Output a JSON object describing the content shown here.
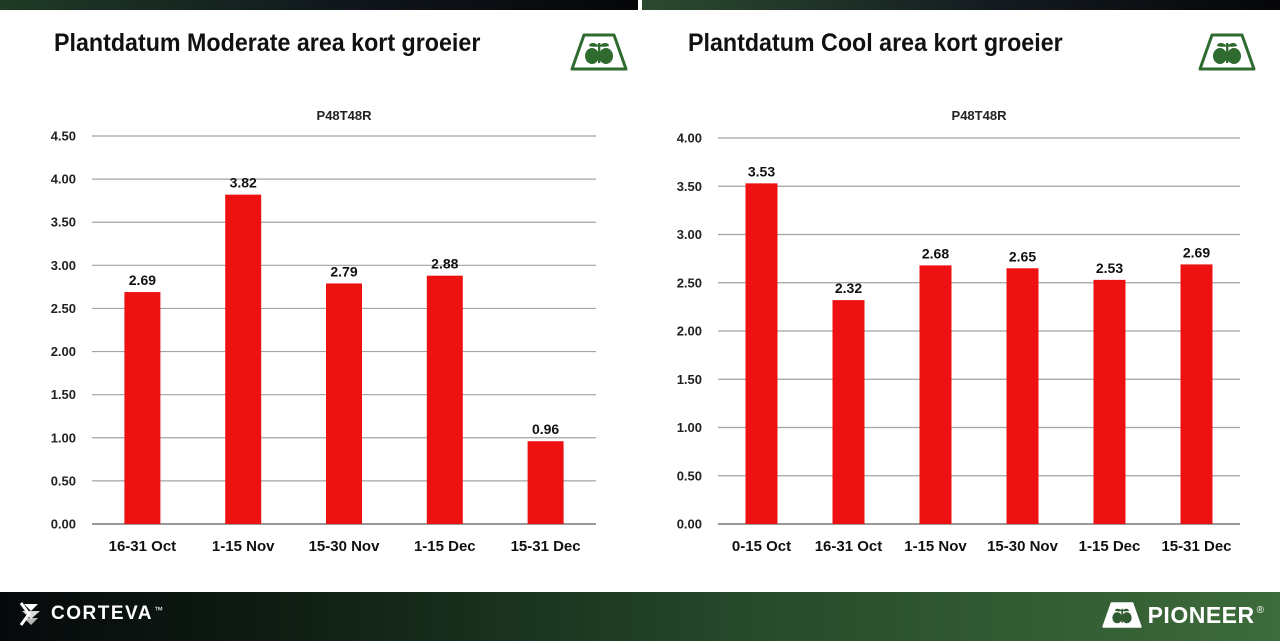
{
  "brand": {
    "left_name": "CORTEVA",
    "left_mark": "™",
    "right_name": "PIONEER",
    "right_mark": "®",
    "accent": "#3d6b3a",
    "logo_green": "#2f6b2f"
  },
  "panels": [
    {
      "title": "Plantdatum Moderate area kort groeier"
    },
    {
      "title": "Plantdatum Cool area kort groeier"
    }
  ],
  "chart_data": [
    {
      "type": "bar",
      "title": "P48T48R",
      "categories": [
        "16-31 Oct",
        "1-15 Nov",
        "15-30 Nov",
        "1-15 Dec",
        "15-31 Dec"
      ],
      "values": [
        2.69,
        3.82,
        2.79,
        2.88,
        0.96
      ],
      "value_labels": [
        "2.69",
        "3.82",
        "2.79",
        "2.88",
        "0.96"
      ],
      "yticks": [
        "0.00",
        "0.50",
        "1.00",
        "1.50",
        "2.00",
        "2.50",
        "3.00",
        "3.50",
        "4.00",
        "4.50"
      ],
      "ylim": [
        0,
        4.5
      ],
      "ystep": 0.5,
      "grid": true,
      "bar_color": "#ee1111",
      "xlabel": "",
      "ylabel": ""
    },
    {
      "type": "bar",
      "title": "P48T48R",
      "categories": [
        "0-15 Oct",
        "16-31 Oct",
        "1-15 Nov",
        "15-30 Nov",
        "1-15 Dec",
        "15-31 Dec"
      ],
      "values": [
        3.53,
        2.32,
        2.68,
        2.65,
        2.53,
        2.69
      ],
      "value_labels": [
        "3.53",
        "2.32",
        "2.68",
        "2.65",
        "2.53",
        "2.69"
      ],
      "yticks": [
        "0.00",
        "0.50",
        "1.00",
        "1.50",
        "2.00",
        "2.50",
        "3.00",
        "3.50",
        "4.00"
      ],
      "ylim": [
        0,
        4.0
      ],
      "ystep": 0.5,
      "grid": true,
      "bar_color": "#ee1111",
      "xlabel": "",
      "ylabel": ""
    }
  ]
}
